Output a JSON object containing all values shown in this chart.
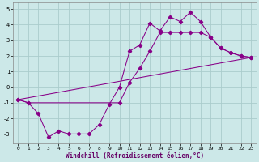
{
  "xlabel": "Windchill (Refroidissement éolien,°C)",
  "bg_color": "#cce8e8",
  "grid_color": "#aacccc",
  "line_color": "#880088",
  "ylim": [
    -3.6,
    5.4
  ],
  "xlim": [
    -0.5,
    23.5
  ],
  "yticks": [
    -3,
    -2,
    -1,
    0,
    1,
    2,
    3,
    4,
    5
  ],
  "xticks": [
    0,
    1,
    2,
    3,
    4,
    5,
    6,
    7,
    8,
    9,
    10,
    11,
    12,
    13,
    14,
    15,
    16,
    17,
    18,
    19,
    20,
    21,
    22,
    23
  ],
  "line1_x": [
    0,
    1,
    2,
    3,
    4,
    5,
    6,
    7,
    8,
    9,
    10,
    11,
    12,
    13,
    14,
    15,
    16,
    17,
    18,
    19,
    20,
    21,
    22,
    23
  ],
  "line1_y": [
    -0.8,
    -1.0,
    -1.7,
    -3.2,
    -2.8,
    -3.0,
    -3.0,
    -3.0,
    -2.4,
    -1.1,
    0.0,
    2.3,
    2.7,
    4.1,
    3.6,
    4.5,
    4.2,
    4.8,
    4.2,
    3.2,
    2.5,
    2.2,
    2.0,
    1.9
  ],
  "line2_x": [
    0,
    1,
    10,
    11,
    12,
    13,
    14,
    15,
    16,
    17,
    18,
    19,
    20,
    21,
    22,
    23
  ],
  "line2_y": [
    -0.8,
    -1.0,
    -1.0,
    0.3,
    1.2,
    2.3,
    3.5,
    3.5,
    3.5,
    3.5,
    3.5,
    3.2,
    2.5,
    2.2,
    2.0,
    1.9
  ],
  "line3_x": [
    0,
    23
  ],
  "line3_y": [
    -0.8,
    1.9
  ]
}
